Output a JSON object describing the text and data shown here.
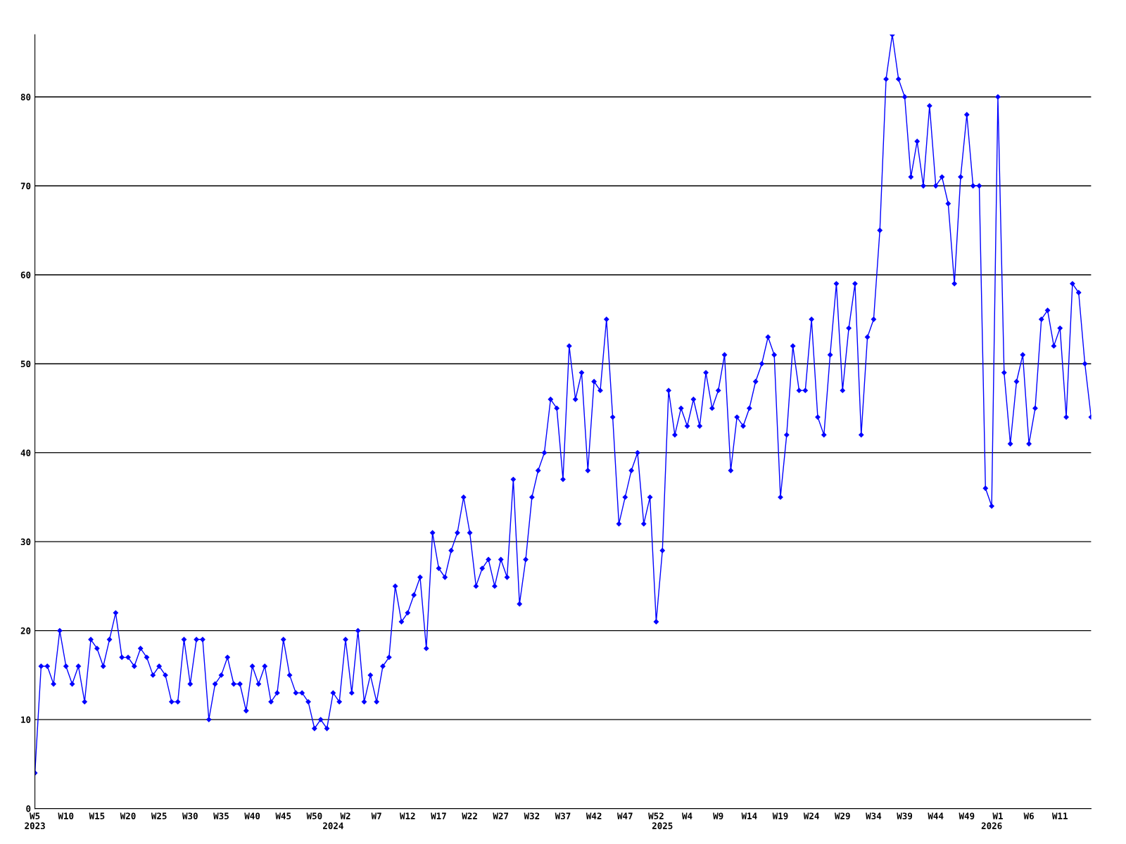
{
  "chart_data": {
    "type": "line",
    "categories": [
      "W5\n2023",
      null,
      null,
      null,
      null,
      "W10",
      null,
      null,
      null,
      null,
      "W15",
      null,
      null,
      null,
      null,
      "W20",
      null,
      null,
      null,
      null,
      "W25",
      null,
      null,
      null,
      null,
      "W30",
      null,
      null,
      null,
      null,
      "W35",
      null,
      null,
      null,
      null,
      "W40",
      null,
      null,
      null,
      null,
      "W45",
      null,
      null,
      null,
      null,
      "W50",
      null,
      null,
      "\n2024",
      null,
      "W2",
      null,
      null,
      null,
      null,
      "W7",
      null,
      null,
      null,
      null,
      "W12",
      null,
      null,
      null,
      null,
      "W17",
      null,
      null,
      null,
      null,
      "W22",
      null,
      null,
      null,
      null,
      "W27",
      null,
      null,
      null,
      null,
      "W32",
      null,
      null,
      null,
      null,
      "W37",
      null,
      null,
      null,
      null,
      "W42",
      null,
      null,
      null,
      null,
      "W47",
      null,
      null,
      null,
      null,
      "W52",
      "\n2025",
      null,
      null,
      null,
      "W4",
      null,
      null,
      null,
      null,
      "W9",
      null,
      null,
      null,
      null,
      "W14",
      null,
      null,
      null,
      null,
      "W19",
      null,
      null,
      null,
      null,
      "W24",
      null,
      null,
      null,
      null,
      "W29",
      null,
      null,
      null,
      null,
      "W34",
      null,
      null,
      null,
      null,
      "W39",
      null,
      null,
      null,
      null,
      "W44",
      null,
      null,
      null,
      null,
      "W49",
      null,
      null,
      null,
      "\n2026",
      "W1",
      null,
      null,
      null,
      null,
      "W6",
      null,
      null,
      null,
      null,
      "W11",
      null,
      null,
      null,
      null,
      null
    ],
    "series": [
      {
        "color": "#0000ff",
        "values": [
          4,
          16,
          16,
          14,
          20,
          16,
          14,
          16,
          12,
          19,
          18,
          16,
          19,
          22,
          17,
          17,
          16,
          18,
          17,
          15,
          16,
          15,
          12,
          12,
          19,
          14,
          19,
          19,
          10,
          14,
          15,
          17,
          14,
          14,
          11,
          16,
          14,
          16,
          12,
          13,
          19,
          15,
          13,
          13,
          12,
          9,
          10,
          9,
          13,
          12,
          19,
          13,
          20,
          12,
          15,
          12,
          16,
          17,
          25,
          21,
          22,
          24,
          26,
          18,
          31,
          27,
          26,
          29,
          31,
          35,
          31,
          25,
          27,
          28,
          25,
          28,
          26,
          37,
          23,
          28,
          35,
          38,
          40,
          46,
          45,
          37,
          52,
          46,
          49,
          38,
          48,
          47,
          55,
          44,
          32,
          35,
          38,
          40,
          32,
          35,
          21,
          29,
          47,
          42,
          45,
          43,
          46,
          43,
          49,
          45,
          47,
          51,
          38,
          44,
          43,
          45,
          48,
          50,
          53,
          51,
          35,
          42,
          52,
          47,
          47,
          55,
          44,
          42,
          51,
          59,
          47,
          54,
          59,
          42,
          53,
          55,
          65,
          82,
          87,
          82,
          80,
          71,
          75,
          70,
          79,
          70,
          71,
          68,
          59,
          71,
          78,
          70,
          70,
          36,
          34,
          80,
          49,
          41,
          48,
          51,
          41,
          45,
          55,
          56,
          52,
          54,
          44,
          59,
          58,
          50,
          44
        ]
      }
    ],
    "ylim": [
      0,
      87
    ],
    "yticks": [
      0,
      10,
      20,
      30,
      40,
      50,
      60,
      70,
      80
    ],
    "grid": "y",
    "legend": false,
    "marker": "diamond",
    "line_style": "solid"
  }
}
